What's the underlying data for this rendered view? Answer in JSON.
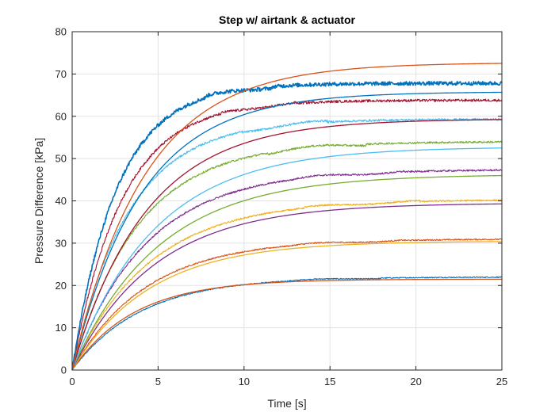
{
  "chart_data": {
    "type": "line",
    "title": "Step w/ airtank & actuator",
    "xlabel": "Time [s]",
    "ylabel": "Pressure Difference [kPa]",
    "xlim": [
      0,
      25
    ],
    "ylim": [
      0,
      80
    ],
    "xticks": [
      0,
      5,
      10,
      15,
      20,
      25
    ],
    "yticks": [
      0,
      10,
      20,
      30,
      40,
      50,
      60,
      70,
      80
    ],
    "grid": true,
    "legend": "none",
    "series": [
      {
        "kind": "measured",
        "final": 22,
        "tau": 4.0,
        "noise": 0.12,
        "color": "#0072BD"
      },
      {
        "kind": "model",
        "final": 21.5,
        "tau": 3.6,
        "color": "#D95319"
      },
      {
        "kind": "measured",
        "final": 31,
        "tau": 4.3,
        "noise": 0.15,
        "color": "#D95319"
      },
      {
        "kind": "model",
        "final": 30.5,
        "tau": 4.5,
        "color": "#EDB120"
      },
      {
        "kind": "measured",
        "final": 40.3,
        "tau": 4.5,
        "noise": 0.18,
        "color": "#EDB120"
      },
      {
        "kind": "model",
        "final": 39.5,
        "tau": 4.8,
        "color": "#7E2F8E"
      },
      {
        "kind": "measured",
        "final": 47.4,
        "tau": 4.3,
        "noise": 0.2,
        "color": "#7E2F8E"
      },
      {
        "kind": "model",
        "final": 46.3,
        "tau": 5.0,
        "color": "#77AC30"
      },
      {
        "kind": "measured",
        "final": 54,
        "tau": 3.8,
        "noise": 0.22,
        "color": "#77AC30"
      },
      {
        "kind": "model",
        "final": 52.8,
        "tau": 4.8,
        "color": "#4DBEEE"
      },
      {
        "kind": "measured",
        "final": 59.3,
        "tau": 3.3,
        "noise": 0.25,
        "color": "#4DBEEE"
      },
      {
        "kind": "model",
        "final": 59.4,
        "tau": 4.3,
        "color": "#A2142F"
      },
      {
        "kind": "measured",
        "final": 63.8,
        "tau": 2.9,
        "noise": 0.3,
        "color": "#A2142F"
      },
      {
        "kind": "model",
        "final": 65.8,
        "tau": 4.0,
        "color": "#0072BD"
      },
      {
        "kind": "measured",
        "final": 67.8,
        "tau": 2.6,
        "noise": 0.45,
        "color": "#0072BD"
      },
      {
        "kind": "model",
        "final": 72.7,
        "tau": 4.2,
        "color": "#D95319"
      }
    ]
  }
}
